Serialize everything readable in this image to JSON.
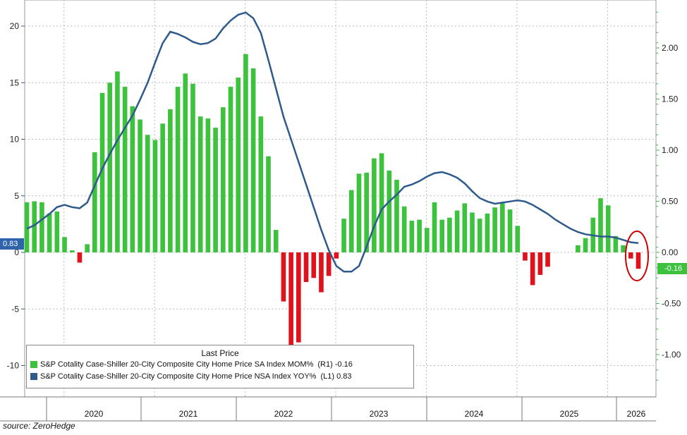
{
  "chart_data": {
    "type": "bar+line",
    "title": "",
    "legend_title": "Last Price",
    "legend_position": "bottom-left",
    "grid": true,
    "left_axis": {
      "ylim": [
        -13,
        22
      ],
      "ticks": [
        -10,
        -5,
        0,
        5,
        10,
        15,
        20
      ]
    },
    "right_axis": {
      "ylim": [
        -1.27,
        2.48
      ],
      "ticks": [
        "-1.00",
        "-0.50",
        "0.00",
        "0.50",
        "1.00",
        "1.50",
        "2.00"
      ]
    },
    "x_axis": {
      "years": [
        "2020",
        "2021",
        "2022",
        "2023",
        "2024",
        "2025",
        "2026"
      ]
    },
    "series": [
      {
        "name": "S&P Cotality Case-Shiller 20-City Composite City Home Price SA Index MOM%",
        "axis": "R1",
        "type": "bar",
        "last_value": "-0.16",
        "color_positive": "#3cc23c",
        "color_negative": "#e0121b",
        "values": [
          0.49,
          0.5,
          0.49,
          0.38,
          0.4,
          0.15,
          0.02,
          -0.1,
          0.08,
          0.98,
          1.56,
          1.66,
          1.77,
          1.62,
          1.43,
          1.3,
          1.15,
          1.1,
          1.26,
          1.4,
          1.62,
          1.75,
          1.65,
          1.33,
          1.31,
          1.22,
          1.42,
          1.62,
          1.71,
          1.94,
          1.8,
          1.33,
          0.94,
          0.22,
          -0.48,
          -0.98,
          -0.88,
          -0.29,
          -0.25,
          -0.39,
          -0.23,
          -0.06,
          0.33,
          0.61,
          0.77,
          0.78,
          0.92,
          0.97,
          0.8,
          0.71,
          0.45,
          0.31,
          0.32,
          0.24,
          0.49,
          0.32,
          0.34,
          0.41,
          0.48,
          0.39,
          0.33,
          0.38,
          0.44,
          0.48,
          0.42,
          0.26,
          -0.08,
          -0.32,
          -0.22,
          -0.14,
          0,
          0,
          0,
          0.07,
          0.14,
          0.34,
          0.53,
          0.46,
          0.16,
          0.07,
          -0.06,
          -0.16
        ]
      },
      {
        "name": "S&P Cotality Case-Shiller 20-City Composite City Home Price NSA Index YOY%",
        "axis": "L1",
        "type": "line",
        "last_value": "0.83",
        "color": "#2e5a8c",
        "values": [
          2.1,
          2.4,
          2.9,
          3.4,
          4.0,
          4.2,
          4.0,
          3.9,
          4.4,
          5.9,
          7.4,
          8.7,
          9.9,
          11.0,
          12.1,
          13.5,
          15.0,
          16.8,
          18.5,
          19.5,
          19.3,
          19.0,
          18.6,
          18.4,
          18.5,
          18.9,
          19.8,
          20.5,
          21.0,
          21.2,
          20.7,
          19.4,
          17.0,
          14.5,
          12.0,
          10.0,
          8.0,
          6.0,
          4.0,
          2.0,
          0.2,
          -1.2,
          -1.7,
          -1.7,
          -1.2,
          0.5,
          2.3,
          3.8,
          4.5,
          5.1,
          5.8,
          6.0,
          6.3,
          6.7,
          7.0,
          7.1,
          6.9,
          6.6,
          6.1,
          5.4,
          4.8,
          4.5,
          4.3,
          4.4,
          4.5,
          4.6,
          4.5,
          4.2,
          3.8,
          3.4,
          2.9,
          2.5,
          2.1,
          1.8,
          1.6,
          1.5,
          1.4,
          1.4,
          1.3,
          1.1,
          0.9,
          0.83
        ]
      }
    ],
    "annotations": [
      {
        "type": "circle",
        "color": "#cc0000",
        "target": "last two bars"
      }
    ]
  },
  "labels": {
    "left_last": "0.83",
    "right_last": "-0.16",
    "legend_row1_value": "(R1) -0.16",
    "legend_row2_value": "(L1) 0.83",
    "source": "source: ZeroHedge"
  }
}
